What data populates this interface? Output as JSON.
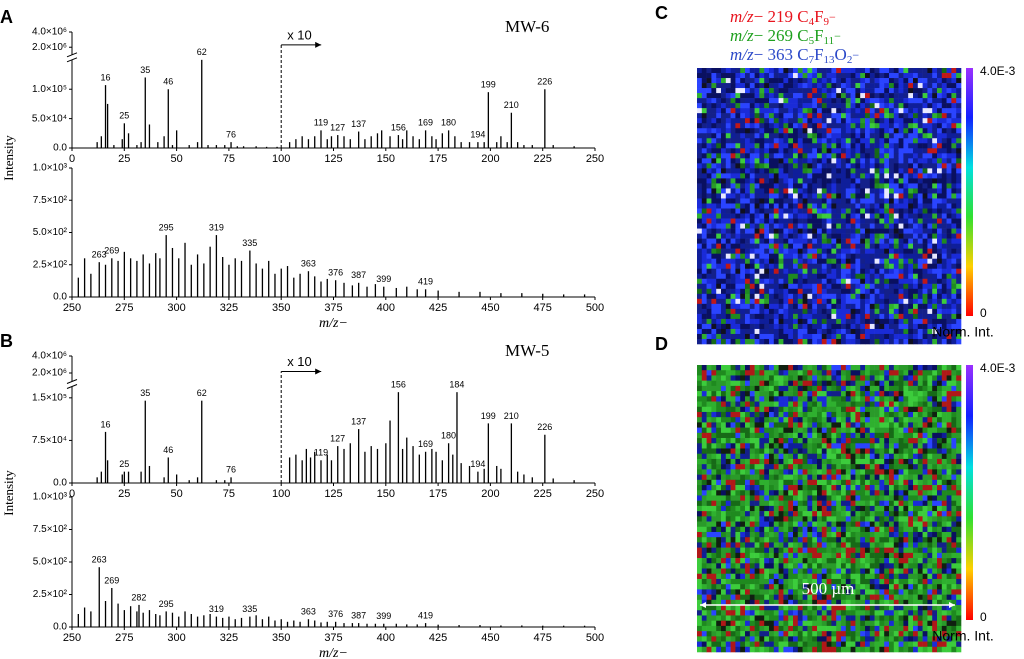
{
  "chart_data": [
    {
      "type": "bar",
      "panel": "A",
      "title": "MW-6",
      "ylabel": "Intensity",
      "color": "#000000",
      "xlim": [
        0,
        250
      ],
      "xticks": [
        0,
        25,
        50,
        75,
        100,
        125,
        150,
        175,
        200,
        225,
        250
      ],
      "ylim": [
        0,
        4000000
      ],
      "ybreak": [
        150000,
        1000000
      ],
      "yticks": [
        {
          "value": 0,
          "label": "0.0"
        },
        {
          "value": 50000,
          "label": "5.0×10⁴"
        },
        {
          "value": 100000,
          "label": "1.0×10⁵"
        },
        {
          "value": 2000000,
          "label": "2.0×10⁶"
        },
        {
          "value": 4000000,
          "label": "4.0×10⁶"
        }
      ],
      "magnified_from": 100,
      "magnification_label": "x 10",
      "labeled_peaks": {
        "x": [
          16,
          25,
          35,
          46,
          62,
          76,
          119,
          127,
          137,
          156,
          169,
          180,
          194,
          199,
          210,
          226
        ],
        "values": [
          107000,
          42000,
          120000,
          100000,
          150000,
          10000,
          30000,
          22000,
          28000,
          22000,
          30000,
          30000,
          10000,
          95000,
          60000,
          100000
        ]
      },
      "peaks": {
        "x": [
          12,
          14,
          17,
          20,
          24,
          27,
          31,
          33,
          37,
          41,
          44,
          48,
          50,
          56,
          60,
          65,
          69,
          73,
          79,
          82,
          88,
          93,
          98,
          104,
          107,
          110,
          113,
          116,
          122,
          124,
          130,
          133,
          140,
          143,
          146,
          148,
          152,
          158,
          160,
          163,
          166,
          172,
          174,
          177,
          183,
          186,
          190,
          197,
          203,
          205,
          208,
          213,
          216,
          220,
          230,
          240
        ],
        "values": [
          10000,
          20000,
          75000,
          5000,
          15000,
          25000,
          5000,
          10000,
          40000,
          10000,
          20000,
          5000,
          30000,
          5000,
          10000,
          5000,
          5000,
          5000,
          3000,
          3000,
          3000,
          2000,
          2000,
          10000,
          15000,
          20000,
          15000,
          20000,
          15000,
          20000,
          20000,
          15000,
          15000,
          20000,
          25000,
          30000,
          20000,
          15000,
          30000,
          20000,
          15000,
          20000,
          15000,
          25000,
          20000,
          10000,
          10000,
          10000,
          10000,
          20000,
          10000,
          10000,
          5000,
          5000,
          5000,
          3000
        ]
      }
    },
    {
      "type": "bar",
      "xlabel": "m/z−",
      "color": "#000000",
      "xlim": [
        250,
        500
      ],
      "xticks": [
        250,
        275,
        300,
        325,
        350,
        375,
        400,
        425,
        450,
        475,
        500
      ],
      "ylim": [
        0,
        1000
      ],
      "yticks": [
        {
          "value": 0,
          "label": "0.0"
        },
        {
          "value": 250,
          "label": "2.5×10²"
        },
        {
          "value": 500,
          "label": "5.0×10²"
        },
        {
          "value": 750,
          "label": "7.5×10²"
        },
        {
          "value": 1000,
          "label": "1.0×10³"
        }
      ],
      "labeled_peaks": {
        "x": [
          263,
          269,
          295,
          319,
          335,
          363,
          376,
          387,
          399,
          419
        ],
        "values": [
          270,
          300,
          480,
          480,
          360,
          200,
          130,
          110,
          80,
          60
        ]
      },
      "peaks": {
        "x": [
          253,
          256,
          259,
          266,
          272,
          275,
          278,
          281,
          284,
          287,
          290,
          292,
          298,
          301,
          304,
          307,
          310,
          313,
          316,
          322,
          325,
          328,
          331,
          338,
          341,
          344,
          347,
          350,
          353,
          356,
          359,
          366,
          369,
          372,
          380,
          384,
          391,
          395,
          405,
          410,
          415,
          425,
          435,
          445,
          455,
          465,
          475,
          485,
          495
        ],
        "values": [
          150,
          300,
          180,
          250,
          280,
          350,
          300,
          280,
          330,
          260,
          340,
          300,
          380,
          300,
          420,
          250,
          330,
          260,
          390,
          310,
          250,
          300,
          280,
          260,
          220,
          280,
          180,
          220,
          240,
          150,
          180,
          160,
          120,
          140,
          110,
          90,
          80,
          100,
          70,
          80,
          60,
          50,
          40,
          40,
          30,
          30,
          25,
          20,
          20
        ]
      }
    },
    {
      "type": "bar",
      "panel": "B",
      "title": "MW-5",
      "ylabel": "Intensity",
      "color": "#000000",
      "xlim": [
        0,
        250
      ],
      "xticks": [
        0,
        25,
        50,
        75,
        100,
        125,
        150,
        175,
        200,
        225,
        250
      ],
      "ylim": [
        0,
        4000000
      ],
      "ybreak": [
        170000,
        1000000
      ],
      "yticks": [
        {
          "value": 0,
          "label": "0.0"
        },
        {
          "value": 75000,
          "label": "7.5×10⁴"
        },
        {
          "value": 150000,
          "label": "1.5×10⁵"
        },
        {
          "value": 2000000,
          "label": "2.0×10⁶"
        },
        {
          "value": 4000000,
          "label": "4.0×10⁶"
        }
      ],
      "magnified_from": 100,
      "magnification_label": "x 10",
      "labeled_peaks": {
        "x": [
          16,
          25,
          35,
          46,
          62,
          76,
          119,
          127,
          137,
          156,
          169,
          180,
          184,
          194,
          199,
          210,
          226
        ],
        "values": [
          90000,
          20000,
          145000,
          45000,
          145000,
          10000,
          40000,
          65000,
          95000,
          160000,
          55000,
          70000,
          160000,
          20000,
          105000,
          105000,
          85000
        ]
      },
      "peaks": {
        "x": [
          12,
          14,
          17,
          24,
          27,
          33,
          37,
          44,
          50,
          56,
          60,
          69,
          73,
          104,
          107,
          110,
          112,
          114,
          116,
          122,
          124,
          130,
          133,
          140,
          143,
          146,
          150,
          152,
          158,
          160,
          163,
          166,
          172,
          174,
          177,
          182,
          186,
          190,
          197,
          203,
          205,
          213,
          216,
          220,
          230,
          240
        ],
        "values": [
          10000,
          20000,
          40000,
          15000,
          20000,
          20000,
          30000,
          10000,
          15000,
          5000,
          10000,
          5000,
          5000,
          45000,
          50000,
          40000,
          60000,
          45000,
          55000,
          50000,
          40000,
          60000,
          70000,
          55000,
          65000,
          60000,
          70000,
          110000,
          60000,
          80000,
          65000,
          50000,
          60000,
          55000,
          40000,
          50000,
          35000,
          30000,
          25000,
          30000,
          25000,
          20000,
          15000,
          10000,
          8000,
          5000
        ]
      }
    },
    {
      "type": "bar",
      "xlabel": "m/z−",
      "color": "#000000",
      "xlim": [
        250,
        500
      ],
      "xticks": [
        250,
        275,
        300,
        325,
        350,
        375,
        400,
        425,
        450,
        475,
        500
      ],
      "ylim": [
        0,
        1000
      ],
      "yticks": [
        {
          "value": 0,
          "label": "0.0"
        },
        {
          "value": 250,
          "label": "2.5×10²"
        },
        {
          "value": 500,
          "label": "5.0×10²"
        },
        {
          "value": 750,
          "label": "7.5×10²"
        },
        {
          "value": 1000,
          "label": "1.0×10³"
        }
      ],
      "labeled_peaks": {
        "x": [
          263,
          269,
          282,
          295,
          319,
          335,
          363,
          376,
          387,
          399,
          419
        ],
        "values": [
          460,
          300,
          170,
          120,
          80,
          80,
          60,
          40,
          30,
          25,
          30
        ]
      },
      "peaks": {
        "x": [
          253,
          256,
          259,
          266,
          272,
          275,
          278,
          281,
          284,
          287,
          290,
          292,
          298,
          301,
          304,
          307,
          310,
          313,
          316,
          322,
          325,
          328,
          331,
          338,
          341,
          344,
          347,
          350,
          353,
          356,
          359,
          366,
          369,
          372,
          380,
          384,
          391,
          395,
          405,
          410,
          415,
          425,
          435,
          445,
          455,
          465,
          475,
          485,
          495
        ],
        "values": [
          100,
          150,
          120,
          200,
          180,
          130,
          160,
          120,
          110,
          130,
          100,
          90,
          110,
          80,
          120,
          100,
          80,
          90,
          100,
          70,
          80,
          60,
          70,
          90,
          60,
          80,
          50,
          60,
          40,
          50,
          40,
          50,
          35,
          40,
          30,
          30,
          25,
          25,
          25,
          20,
          20,
          18,
          15,
          15,
          12,
          12,
          10,
          10,
          10
        ]
      }
    }
  ],
  "images": [
    {
      "panel": "C",
      "legend": [
        {
          "parts": [
            "m/z",
            "− 219 C",
            "4",
            "F",
            "9",
            "−"
          ],
          "color": "#e8141e"
        },
        {
          "parts": [
            "m/z",
            "− 269 C",
            "5",
            "F",
            "11",
            "−"
          ],
          "color": "#1ea01e"
        },
        {
          "parts": [
            "m/z",
            "− 363 C",
            "7",
            "F",
            "13",
            "O",
            "2",
            "−"
          ],
          "color": "#2a48c8"
        }
      ],
      "colorbar": {
        "lim": [
          0,
          0.004
        ],
        "ticks": [
          0,
          {
            "value": 0.004,
            "label": "4.0E-3"
          }
        ],
        "label": "Norm. Int."
      }
    },
    {
      "panel": "D",
      "colorbar": {
        "lim": [
          0,
          0.004
        ],
        "ticks": [
          0,
          {
            "value": 0.004,
            "label": "4.0E-3"
          }
        ],
        "label": "Norm. Int."
      },
      "scale_bar": "500 µm"
    }
  ]
}
